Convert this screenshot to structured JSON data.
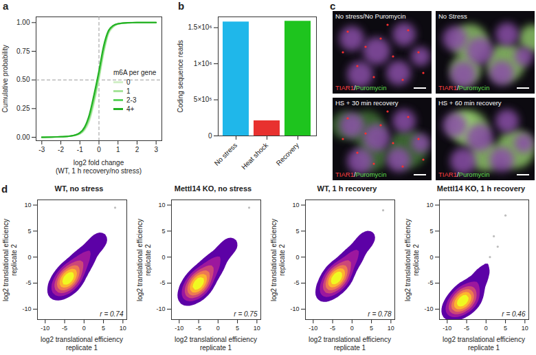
{
  "chart_data": [
    {
      "type": "line",
      "panel": "a",
      "xlabel": [
        "log2 fold change",
        "(WT, 1 h recovery/no stress)"
      ],
      "ylabel": "Cumulative probability",
      "x": [
        -3,
        -2.5,
        -2,
        -1.5,
        -1,
        -0.75,
        -0.5,
        -0.25,
        0,
        0.25,
        0.5,
        0.75,
        1,
        1.5,
        2,
        2.5,
        3
      ],
      "series": [
        {
          "name": "0",
          "color": "#d2efc8",
          "values": [
            0,
            0.002,
            0.005,
            0.01,
            0.03,
            0.06,
            0.14,
            0.3,
            0.5,
            0.73,
            0.9,
            0.96,
            0.985,
            0.997,
            1,
            1,
            1
          ]
        },
        {
          "name": "1",
          "color": "#a6e39a",
          "values": [
            0,
            0.002,
            0.005,
            0.01,
            0.03,
            0.07,
            0.16,
            0.32,
            0.52,
            0.75,
            0.91,
            0.965,
            0.988,
            0.998,
            1,
            1,
            1
          ]
        },
        {
          "name": "2-3",
          "color": "#5fd35f",
          "values": [
            0,
            0.002,
            0.004,
            0.01,
            0.035,
            0.08,
            0.18,
            0.35,
            0.55,
            0.77,
            0.92,
            0.97,
            0.99,
            0.998,
            1,
            1,
            1
          ]
        },
        {
          "name": "4+",
          "color": "#22b022",
          "values": [
            0,
            0.001,
            0.004,
            0.01,
            0.04,
            0.09,
            0.2,
            0.38,
            0.58,
            0.8,
            0.93,
            0.975,
            0.99,
            0.999,
            1,
            1,
            1
          ]
        }
      ],
      "xlim": [
        -3.3,
        3.3
      ],
      "xticks": [
        -3,
        -2,
        -1,
        0,
        1,
        2,
        3
      ],
      "ylim": [
        -0.03,
        1.05
      ],
      "yticks": [
        {
          "value": 0,
          "label": "0.00"
        },
        {
          "value": 0.25,
          "label": "0.25"
        },
        {
          "value": 0.5,
          "label": "0.50"
        },
        {
          "value": 0.75,
          "label": "0.75"
        },
        {
          "value": 1,
          "label": "1.00"
        }
      ],
      "legend_title": "m6A per gene",
      "legend": "right",
      "vlines": [
        0
      ],
      "hlines": [
        0.5
      ]
    },
    {
      "type": "bar",
      "panel": "b",
      "ylabel": "Coding sequence reads",
      "categories": [
        "No stress",
        "Heat shock",
        "Recovery"
      ],
      "values": [
        1580000,
        210000,
        1590000
      ],
      "colors": [
        "#1fb7ea",
        "#e8312f",
        "#1ec41e"
      ],
      "ylim": [
        0,
        1650000
      ],
      "yticks": [
        0,
        {
          "value": 500000,
          "label": "5×10⁵"
        },
        {
          "value": 1000000,
          "label": "1×10⁶"
        },
        {
          "value": 1500000,
          "label": "1.5×10⁶"
        }
      ]
    },
    {
      "type": "scatter",
      "panel": "d",
      "title": "WT, no stress",
      "xlabel": [
        "log2 translational efficiency",
        "replicate 1"
      ],
      "ylabel": [
        "log2 translational efficiency",
        "replicate 2"
      ],
      "x": [
        -4,
        -3.5,
        -4.5,
        -3,
        -5,
        -4.2,
        -3.8,
        -2.5,
        -5.5,
        -6,
        -2,
        -1,
        0,
        1,
        2,
        3,
        5,
        -7,
        -8,
        -6.5,
        -3,
        -4.8,
        -1.5,
        0.5,
        4,
        8,
        -2.8,
        -5.2,
        -3.3,
        -4.4
      ],
      "values": [
        -4.2,
        -3.3,
        -4.8,
        -2.7,
        -5.3,
        -3.9,
        -4,
        -3,
        -5,
        -6.4,
        -1.5,
        -2,
        0.5,
        0.2,
        1.8,
        2.5,
        4,
        -6,
        -7.5,
        -5.5,
        -3.8,
        -4.4,
        -0.5,
        -1.2,
        3.2,
        9.5,
        -2.5,
        -5.6,
        -3.5,
        -4.1
      ],
      "xlim": [
        -12,
        11
      ],
      "xticks": [
        -10,
        -5,
        0,
        5,
        10
      ],
      "ylim": [
        -12,
        11
      ],
      "yticks": [
        -10,
        -5,
        0,
        5,
        10
      ],
      "annotations": [
        "r = 0.74"
      ]
    },
    {
      "type": "scatter",
      "title": "Mettl14 KO, no stress",
      "xlabel": [
        "log2 translational efficiency",
        "replicate 1"
      ],
      "ylabel": [
        "log2 translational efficiency",
        "replicate 2"
      ],
      "x": [
        -5,
        -4.5,
        -5.5,
        -4,
        -6,
        -5.2,
        -4.8,
        -3.5,
        -6.5,
        -7,
        -3,
        -2,
        -1,
        0,
        1,
        2,
        4,
        -8,
        -9,
        -7.5,
        -4,
        -5.8,
        -2.5,
        -0.5,
        3,
        8,
        -3.8,
        -6.2,
        -4.3,
        -5.4
      ],
      "values": [
        -5.1,
        -4.3,
        -5.8,
        -3.7,
        -6.3,
        -4.9,
        -5,
        -4,
        -6,
        -7.4,
        -2.5,
        -2.8,
        -0.5,
        -1,
        0.8,
        1.5,
        3,
        -7,
        -8.5,
        -6.5,
        -4.8,
        -5.4,
        -1.5,
        -2.2,
        2.2,
        9.5,
        -3.5,
        -6.6,
        -4.5,
        -5.1
      ],
      "xlim": [
        -12,
        11
      ],
      "xticks": [
        -10,
        -5,
        0,
        5,
        10
      ],
      "ylim": [
        -12,
        11
      ],
      "yticks": [
        -10,
        -5,
        0,
        5,
        10
      ],
      "annotations": [
        "r = 0.75"
      ]
    },
    {
      "type": "scatter",
      "title": "WT, 1 h recovery",
      "xlabel": [
        "log2 translational efficiency",
        "replicate 1"
      ],
      "ylabel": [
        "log2 translational efficiency",
        "replicate 2"
      ],
      "x": [
        -4,
        -3.5,
        -4.5,
        -3,
        -5,
        -4.2,
        -3.8,
        -2.5,
        -5.5,
        -6,
        -2,
        -1,
        0,
        1,
        2,
        3,
        5,
        -7,
        -8,
        -6.5,
        -3,
        -4.8,
        -1.5,
        0.5,
        4,
        8,
        -2.8,
        -5.2,
        -3.3,
        -4.4
      ],
      "values": [
        -4.1,
        -3.4,
        -4.6,
        -2.9,
        -5.2,
        -4,
        -3.9,
        -2.8,
        -5.3,
        -6.1,
        -1.8,
        -1.5,
        0.3,
        0.6,
        2.2,
        2.8,
        4.5,
        -6.8,
        -7.8,
        -6,
        -3.4,
        -4.6,
        -1,
        -0.2,
        3.5,
        9,
        -2.7,
        -5.4,
        -3.4,
        -4.3
      ],
      "xlim": [
        -12,
        11
      ],
      "xticks": [
        -10,
        -5,
        0,
        5,
        10
      ],
      "ylim": [
        -12,
        11
      ],
      "yticks": [
        -10,
        -5,
        0,
        5,
        10
      ],
      "annotations": [
        "r = 0.78"
      ]
    },
    {
      "type": "scatter",
      "title": "Mettl14 KO, 1 h recovery",
      "xlabel": [
        "log2 translational efficiency",
        "replicate 1"
      ],
      "ylabel": [
        "log2 translational efficiency",
        "replicate 2"
      ],
      "x": [
        -6,
        -5.5,
        -6.5,
        -5,
        -7,
        -6.2,
        -5.8,
        -4.5,
        -7.5,
        -8,
        -4,
        -3,
        -2,
        -1,
        0,
        1,
        3,
        -9,
        -10,
        -8.5,
        -5,
        -6.8,
        -3.5,
        -1.5,
        2,
        5,
        -4.8,
        -7.2,
        -5.3,
        -6.4
      ],
      "values": [
        -8.5,
        -8,
        -9,
        -7.5,
        -9.5,
        -8.2,
        -7,
        -8.8,
        -10,
        -9.2,
        -6.5,
        -5,
        -7,
        -4,
        -2,
        0,
        2,
        -10.5,
        -11,
        -9.8,
        -6.2,
        -8.6,
        -7.8,
        -3.5,
        4,
        8,
        -7.2,
        -9.2,
        -8.1,
        -8.7
      ],
      "xlim": [
        -12,
        11
      ],
      "xticks": [
        -10,
        -5,
        0,
        5,
        10
      ],
      "ylim": [
        -12,
        11
      ],
      "yticks": [
        -10,
        -5,
        0,
        5,
        10
      ],
      "annotations": [
        "r = 0.46"
      ]
    }
  ],
  "image_panel": {
    "panel": "c",
    "tiles": [
      {
        "title": "No stress/No Puromycin",
        "stain_label": [
          {
            "text": "TIAR1",
            "color": "#ff4040"
          },
          {
            "text": "/",
            "color": "#ffffff"
          },
          {
            "text": "Puromycin",
            "color": "#5fdc4f"
          }
        ]
      },
      {
        "title": "No Stress",
        "stain_label": [
          {
            "text": "TIAR1",
            "color": "#ff4040"
          },
          {
            "text": "/",
            "color": "#ffffff"
          },
          {
            "text": "Puromycin",
            "color": "#5fdc4f"
          }
        ]
      },
      {
        "title": "HS + 30 min recovery",
        "stain_label": [
          {
            "text": "TIAR1",
            "color": "#ff4040"
          },
          {
            "text": "/",
            "color": "#ffffff"
          },
          {
            "text": "Puromycin",
            "color": "#5fdc4f"
          }
        ]
      },
      {
        "title": "HS + 60 min recovery",
        "stain_label": [
          {
            "text": "TIAR1",
            "color": "#ff4040"
          },
          {
            "text": "/",
            "color": "#ffffff"
          },
          {
            "text": "Puromycin",
            "color": "#5fdc4f"
          }
        ]
      }
    ]
  }
}
